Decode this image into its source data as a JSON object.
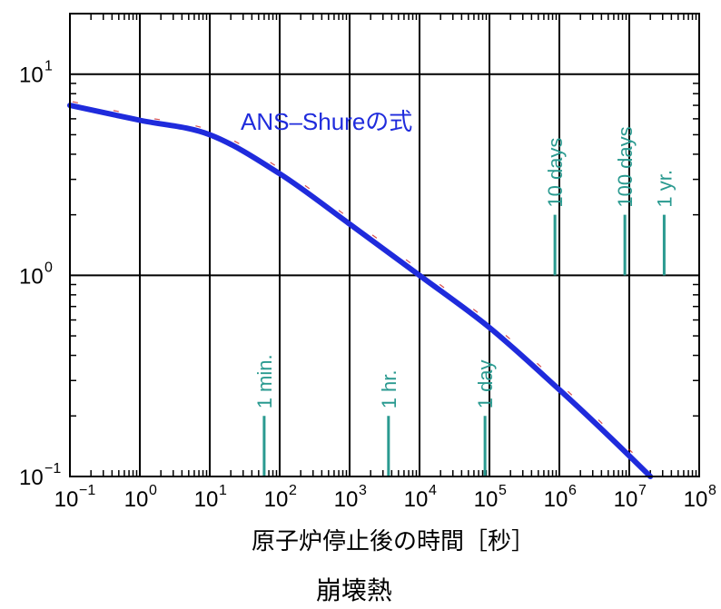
{
  "chart_data": {
    "type": "line",
    "title": "崩壊熱",
    "xlabel": "原子炉停止後の時間［秒］",
    "ylabel": "",
    "x_scale": "log",
    "y_scale": "log",
    "xlim": [
      0.1,
      100000000
    ],
    "ylim": [
      0.1,
      20
    ],
    "grid": true,
    "x_ticks": [
      {
        "value": 0.1,
        "base": "10",
        "exp": "−1"
      },
      {
        "value": 1,
        "base": "10",
        "exp": "0"
      },
      {
        "value": 10,
        "base": "10",
        "exp": "1"
      },
      {
        "value": 100,
        "base": "10",
        "exp": "2"
      },
      {
        "value": 1000,
        "base": "10",
        "exp": "3"
      },
      {
        "value": 10000,
        "base": "10",
        "exp": "4"
      },
      {
        "value": 100000,
        "base": "10",
        "exp": "5"
      },
      {
        "value": 1000000,
        "base": "10",
        "exp": "6"
      },
      {
        "value": 10000000,
        "base": "10",
        "exp": "7"
      },
      {
        "value": 100000000,
        "base": "10",
        "exp": "8"
      }
    ],
    "y_ticks": [
      {
        "value": 0.1,
        "base": "10",
        "exp": "−1"
      },
      {
        "value": 1,
        "base": "10",
        "exp": "0"
      },
      {
        "value": 10,
        "base": "10",
        "exp": "1"
      }
    ],
    "series": [
      {
        "name": "ANS–Shureの式",
        "color": "#1f2bdc",
        "x": [
          0.1,
          1,
          10,
          100,
          1000,
          10000,
          100000,
          1000000,
          5000000,
          20000000
        ],
        "y": [
          7.0,
          5.9,
          5.0,
          3.2,
          1.8,
          1.0,
          0.55,
          0.27,
          0.16,
          0.1
        ]
      }
    ],
    "time_markers": [
      {
        "label": "1 min.",
        "x": 60,
        "y_bottom": 0.1,
        "y_top": 0.2
      },
      {
        "label": "1 hr.",
        "x": 3600,
        "y_bottom": 0.1,
        "y_top": 0.2
      },
      {
        "label": "1 day",
        "x": 86400,
        "y_bottom": 0.1,
        "y_top": 0.2
      },
      {
        "label": "10 days",
        "x": 864000,
        "y_bottom": 1,
        "y_top": 2
      },
      {
        "label": "100 days",
        "x": 8640000,
        "y_bottom": 1,
        "y_top": 2
      },
      {
        "label": "1 yr.",
        "x": 31536000,
        "y_bottom": 1,
        "y_top": 2
      }
    ],
    "colors": {
      "curve": "#1f2bdc",
      "markers": "#2a9a90",
      "grid": "#000000",
      "noise": "#cc2020"
    }
  }
}
